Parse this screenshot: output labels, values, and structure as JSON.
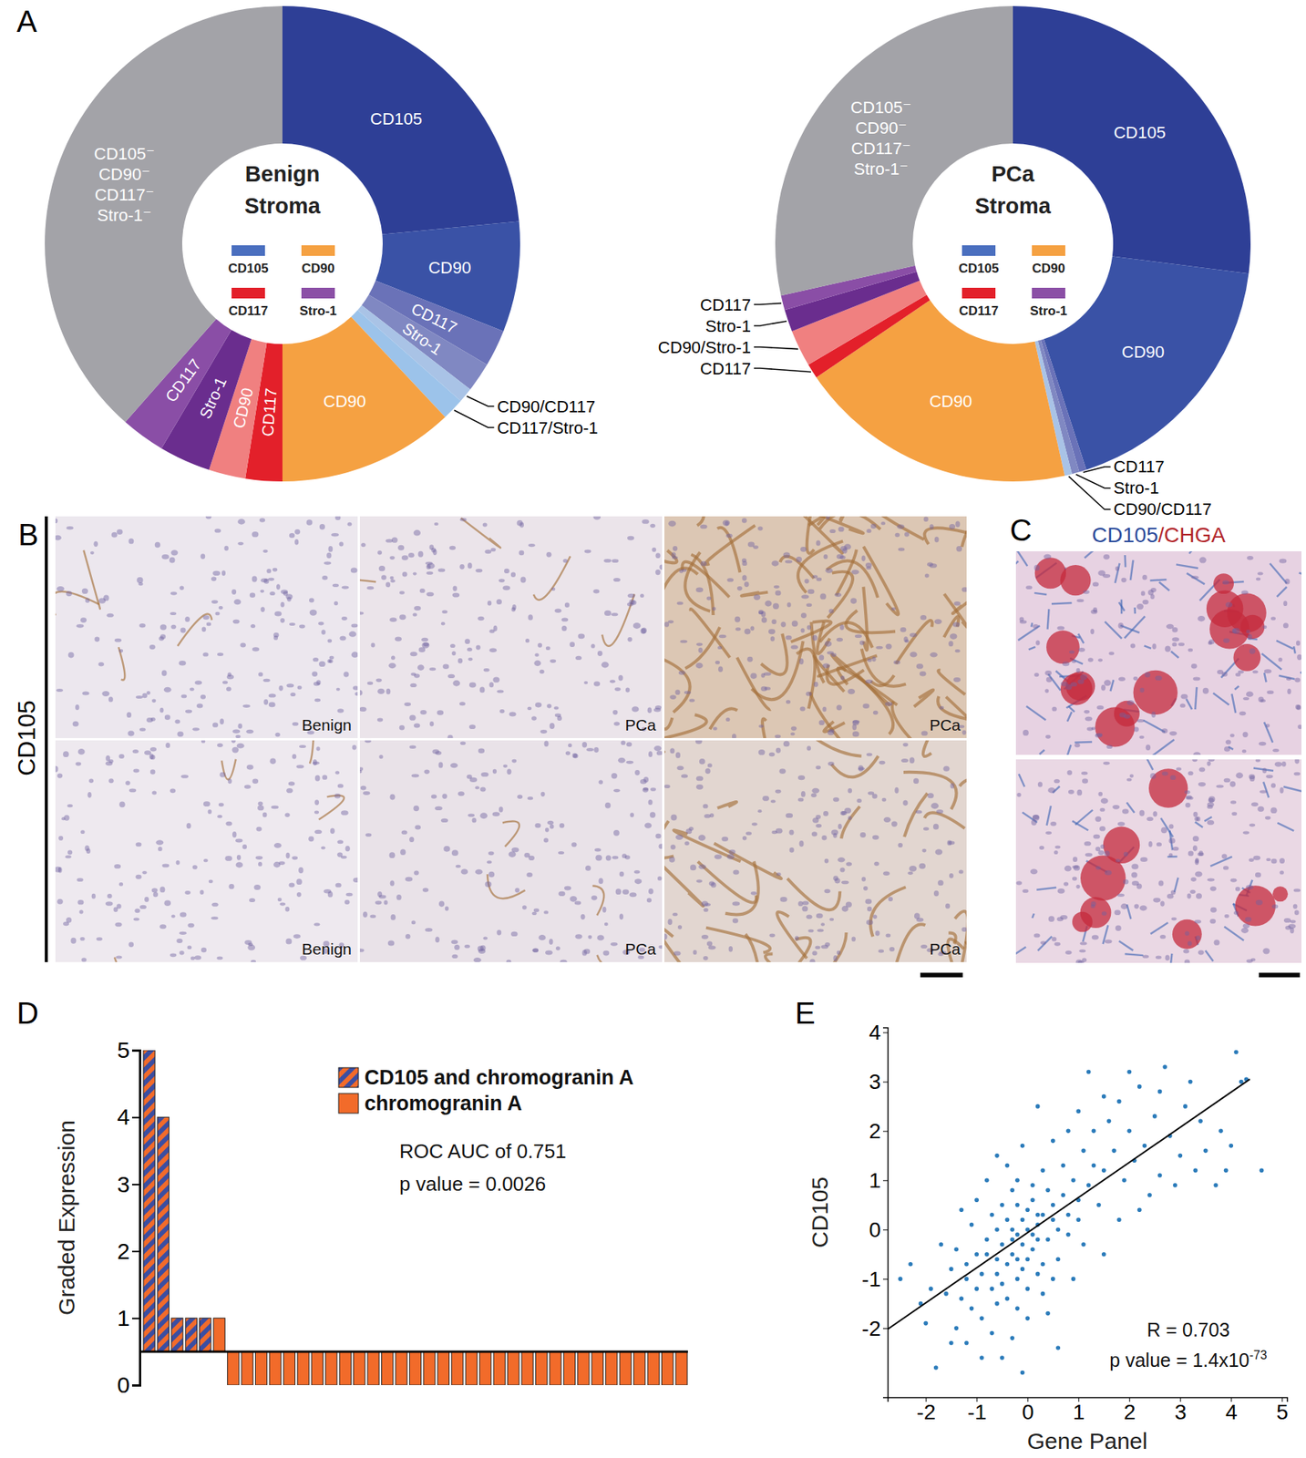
{
  "panel_labels": [
    "A",
    "B",
    "C",
    "D",
    "E"
  ],
  "micrographs": {
    "B": {
      "row_label": "CD105",
      "tiles": [
        "Benign",
        "PCa",
        "PCa",
        "Benign",
        "PCa",
        "PCa"
      ]
    },
    "C": {
      "title": [
        {
          "text": "CD105",
          "color": "#2b4b9b"
        },
        {
          "text": "/CHGA",
          "color": "#b2262b"
        }
      ]
    }
  },
  "chart_data": [
    {
      "type": "pie",
      "title": "Benign Stroma",
      "categories": [
        "CD105",
        "CD90",
        "CD117",
        "Stro-1",
        "CD90/CD117",
        "CD117/Stro-1",
        "CD90",
        "CD117",
        "CD90",
        "Stro-1",
        "CD117",
        "CD105⁻ CD90⁻ CD117⁻ Stro-1⁻"
      ],
      "values": [
        23.5,
        7.5,
        2.5,
        2,
        1,
        1.5,
        12,
        2.5,
        2.5,
        3.5,
        3,
        38.5
      ],
      "colors": [
        "#2e3f96",
        "#3a52a6",
        "#6a72b8",
        "#8088c2",
        "#a9c3e6",
        "#9cc3ea",
        "#f5a142",
        "#e3202a",
        "#f08080",
        "#6a2d8e",
        "#8a4ea6",
        "#a3a3a8"
      ],
      "groups": [
        {
          "name": "CD105",
          "color": "#4a6fbf"
        },
        {
          "name": "CD90",
          "color": "#f5a142"
        },
        {
          "name": "CD117",
          "color": "#e3202a"
        },
        {
          "name": "Stro-1",
          "color": "#8b4fa6"
        }
      ]
    },
    {
      "type": "pie",
      "title": "PCa Stroma",
      "categories": [
        "CD105",
        "CD90",
        "CD117",
        "Stro-1",
        "CD90/CD117",
        "CD90",
        "CD117",
        "CD90/Stro-1",
        "Stro-1",
        "CD117",
        "CD105⁻ CD90⁻ CD117⁻ Stro-1⁻"
      ],
      "values": [
        27,
        18,
        0.5,
        0.5,
        0.5,
        19,
        1,
        2.5,
        1.5,
        1,
        28.5
      ],
      "colors": [
        "#2e3f96",
        "#3a52a6",
        "#6a72b8",
        "#8088c2",
        "#a9c3e6",
        "#f5a142",
        "#e3202a",
        "#f08080",
        "#6a2d8e",
        "#8a4ea6",
        "#a3a3a8"
      ],
      "groups": [
        {
          "name": "CD105",
          "color": "#4a6fbf"
        },
        {
          "name": "CD90",
          "color": "#f5a142"
        },
        {
          "name": "CD117",
          "color": "#e3202a"
        },
        {
          "name": "Stro-1",
          "color": "#8b4fa6"
        }
      ]
    },
    {
      "type": "bar",
      "ylabel": "Graded Expression",
      "categories": [
        null,
        null,
        null,
        null,
        null,
        null,
        null,
        null,
        null,
        null,
        null,
        null,
        null,
        null,
        null,
        null,
        null,
        null,
        null,
        null,
        null,
        null,
        null,
        null,
        null,
        null,
        null,
        null,
        null,
        null,
        null,
        null,
        null,
        null,
        null,
        null,
        null,
        null,
        null
      ],
      "series": [
        {
          "name": "CD105 and chromogranin A",
          "color": "#3b4ea2",
          "values": [
            5,
            4,
            1,
            1,
            1,
            null,
            null,
            null,
            null,
            null,
            null,
            null,
            null,
            null,
            null,
            null,
            null,
            null,
            null,
            null,
            null,
            null,
            null,
            null,
            null,
            null,
            null,
            null,
            null,
            null,
            null,
            null,
            null,
            null,
            null,
            null,
            null,
            null,
            null
          ]
        },
        {
          "name": "chromogranin A",
          "color": "#f26b2a",
          "values": [
            null,
            null,
            null,
            null,
            null,
            1,
            0,
            0,
            0,
            0,
            0,
            0,
            0,
            0,
            0,
            0,
            0,
            0,
            0,
            0,
            0,
            0,
            0,
            0,
            0,
            0,
            0,
            0,
            0,
            0,
            0,
            0,
            0,
            0,
            0,
            0,
            0,
            0,
            0
          ]
        }
      ],
      "ylim": [
        0,
        5
      ],
      "yticks": [
        0,
        1,
        2,
        3,
        4,
        5
      ],
      "baseline": 0.5,
      "tick_labels": "y",
      "legend": "top-right",
      "annotations": [
        "ROC AUC of 0.751",
        "p value = 0.0026"
      ]
    },
    {
      "type": "scatter",
      "xlabel": "Gene Panel",
      "ylabel": "CD105",
      "color": "#2b7bba",
      "marker": "circle",
      "x": [
        -0.5,
        -0.3,
        -0.2,
        0,
        0.2,
        -0.4,
        -0.6,
        -0.1,
        0.1,
        0.3,
        -0.8,
        -0.7,
        -0.2,
        0.1,
        0.4,
        -0.9,
        -0.5,
        0,
        0.2,
        -1.0,
        -1.2,
        -1.1,
        -0.3,
        0.5,
        0.6,
        -0.6,
        -0.2,
        0.3,
        -1.3,
        -0.9,
        -0.4,
        -0.1,
        0.0,
        -0.3,
        -0.6,
        -0.8,
        0.2,
        0.0,
        -0.5,
        0.4,
        -1.5,
        -1.6,
        -1.4,
        -1.9,
        -2.3,
        -1.8,
        -1.2,
        -0.7,
        -0.3,
        -0.5,
        -1.0,
        -0.8,
        -0.4,
        -0.1,
        -0.6,
        -1.3,
        -1.7,
        -2.0,
        -1.1,
        -0.2,
        0.6,
        0.8,
        0.9,
        1.0,
        0.7,
        0.5,
        1.1,
        1.2,
        1.3,
        1.0,
        1.5,
        1.6,
        1.4,
        1.7,
        1.8,
        1.9,
        2.0,
        2.1,
        2.2,
        2.3,
        2.4,
        2.5,
        2.6,
        2.7,
        2.8,
        2.9,
        3.0,
        3.1,
        3.3,
        3.5,
        3.7,
        3.8,
        3.9,
        4.0,
        4.2,
        4.3,
        4.1,
        4.6,
        3.2,
        2.0,
        1.2,
        1.5,
        0.8,
        0.3,
        0.2,
        1.1,
        1.5,
        0.9,
        0.4,
        0.6,
        -0.9,
        -1.5,
        -2.1,
        -2.5,
        -0.1,
        1.8,
        2.2,
        2.6,
        3.4,
        1.3,
        0.1,
        -0.2,
        0.5,
        0.7,
        -0.7,
        -1.0,
        -0.4,
        0.0,
        -1.4,
        -1.2,
        0.3,
        0.5,
        0.8,
        1.0,
        -0.3,
        -0.1,
        0.1,
        -0.6,
        -0.2,
        0.2
      ],
      "y": [
        -0.3,
        -0.5,
        -0.1,
        0,
        0.1,
        0.2,
        -0.6,
        -0.8,
        -0.4,
        0.3,
        -0.2,
        0.3,
        0.5,
        0.6,
        -0.2,
        -0.9,
        -1.1,
        -1.2,
        -0.9,
        -0.5,
        -1.0,
        0.1,
        0.8,
        0.5,
        0.0,
        -1.5,
        -1.6,
        -1.3,
        -1.4,
        -1.8,
        -0.7,
        0.2,
        0.4,
        -0.2,
        0.0,
        -0.5,
        -0.2,
        -0.6,
        0.5,
        0.8,
        -0.8,
        -1.3,
        -2.0,
        -1.2,
        -0.7,
        -2.8,
        -2.3,
        -2.1,
        -2.2,
        -2.6,
        0.6,
        1.0,
        1.3,
        1.7,
        1.5,
        0.4,
        -0.3,
        -1.9,
        -1.6,
        -1.0,
        -0.6,
        0.3,
        1.0,
        0.6,
        1.3,
        1.8,
        1.6,
        0.9,
        2.0,
        2.4,
        1.2,
        2.2,
        0.5,
        1.6,
        2.6,
        1.0,
        2.0,
        1.4,
        2.9,
        1.7,
        0.7,
        2.3,
        1.1,
        3.3,
        1.9,
        0.9,
        1.5,
        2.5,
        1.2,
        1.6,
        0.9,
        2.0,
        1.2,
        1.7,
        3.0,
        3.05,
        3.6,
        1.2,
        3.0,
        3.2,
        3.2,
        2.7,
        2.0,
        1.2,
        2.5,
        -0.3,
        -0.5,
        -1.0,
        -1.7,
        -2.4,
        -2.6,
        -2.3,
        -1.5,
        -1.0,
        -2.9,
        0.2,
        0.4,
        2.8,
        2.2,
        1.3,
        0.9,
        1.0,
        0.2,
        0.7,
        -1.2,
        -1.2,
        -1.4,
        -1.8,
        -0.4,
        -0.7,
        -0.7,
        -1.0,
        -0.1,
        0.2,
        0.0,
        -0.3,
        -0.1,
        -0.9,
        -0.6,
        0.3
      ],
      "xlim": [
        -2.75,
        5.1
      ],
      "ylim": [
        -3.4,
        4.1
      ],
      "xticks": [
        -2,
        -1,
        0,
        1,
        2,
        3,
        4,
        5
      ],
      "yticks": [
        -2,
        -1,
        0,
        1,
        2,
        3,
        4
      ],
      "fit_line": {
        "x": [
          -2.75,
          4.37
        ],
        "y": [
          -2.02,
          3.05
        ]
      },
      "annotations": [
        {
          "text": "R = 0.703"
        },
        {
          "text": "p value = 1.4x10",
          "superscript": "-73"
        }
      ]
    }
  ]
}
